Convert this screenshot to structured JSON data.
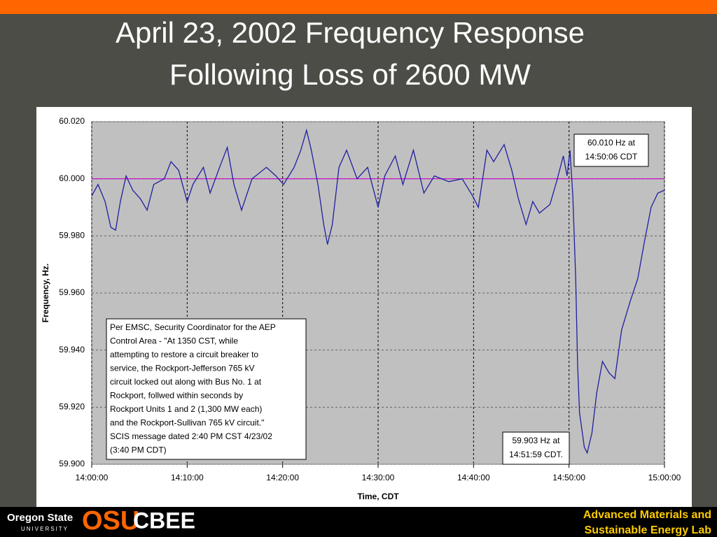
{
  "slide": {
    "title_lines": [
      "April 23, 2002 Frequency Response",
      "Following Loss of 2600 MW"
    ],
    "footer_left": [
      "Oregon State",
      "UNIVERSITY"
    ],
    "footer_osu": "OSU",
    "footer_cbee": "CBEE",
    "footer_right": [
      "Advanced Materials and",
      "Sustainable Energy Lab"
    ]
  },
  "chart_data": {
    "type": "line",
    "y_label": "Frequency, Hz.",
    "x_label": "Time, CDT",
    "xlim": [
      0,
      60
    ],
    "xticks": [
      {
        "value": 0,
        "label": "14:00:00"
      },
      {
        "value": 10,
        "label": "14:10:00"
      },
      {
        "value": 20,
        "label": "14:20:00"
      },
      {
        "value": 30,
        "label": "14:30:00"
      },
      {
        "value": 40,
        "label": "14:40:00"
      },
      {
        "value": 50,
        "label": "14:50:00"
      },
      {
        "value": 60,
        "label": "15:00:00"
      }
    ],
    "ylim": [
      59.9,
      60.02
    ],
    "yticks": [
      {
        "value": 59.9,
        "label": "59.900"
      },
      {
        "value": 59.92,
        "label": "59.920"
      },
      {
        "value": 59.94,
        "label": "59.940"
      },
      {
        "value": 59.96,
        "label": "59.960"
      },
      {
        "value": 59.98,
        "label": "59.980"
      },
      {
        "value": 60,
        "label": "60.000"
      },
      {
        "value": 60.02,
        "label": "60.020"
      }
    ],
    "grid": true,
    "hline": {
      "value": 60,
      "color": "#cc00cc"
    },
    "series": [
      {
        "color": "#1f1fa0",
        "x": [
          0,
          0.66,
          1.4,
          2,
          2.5,
          3,
          3.6,
          4.3,
          5.1,
          5.8,
          6.5,
          7.6,
          8.3,
          9.1,
          10,
          10.6,
          11.7,
          12.4,
          13.5,
          14.2,
          14.9,
          15.7,
          16.8,
          18.3,
          19.3,
          20.1,
          21.2,
          21.9,
          22.5,
          23,
          23.7,
          24.3,
          24.7,
          25.2,
          25.9,
          26.7,
          27.8,
          28.9,
          30,
          30.7,
          31.8,
          32.6,
          33.7,
          34.8,
          35.9,
          37.4,
          38.8,
          39.9,
          40.5,
          41.4,
          42.1,
          43.2,
          44,
          44.7,
          45.5,
          46.2,
          46.9,
          48,
          48.7,
          49.4,
          49.8,
          50.1,
          50.4,
          50.7,
          50.9,
          51.1,
          51.6,
          51.9,
          52.4,
          52.9,
          53.5,
          54.2,
          54.8,
          55.5,
          56.4,
          57.2,
          57.9,
          58.6,
          59.3,
          60
        ],
        "values": [
          59.994,
          59.998,
          59.992,
          59.983,
          59.982,
          59.992,
          60.001,
          59.996,
          59.993,
          59.989,
          59.998,
          60.0,
          60.006,
          60.003,
          59.992,
          59.998,
          60.004,
          59.995,
          60.005,
          60.011,
          59.998,
          59.989,
          60.0,
          60.004,
          60.001,
          59.998,
          60.004,
          60.01,
          60.017,
          60.01,
          59.998,
          59.984,
          59.977,
          59.984,
          60.004,
          60.01,
          60.0,
          60.004,
          59.99,
          60.001,
          60.008,
          59.998,
          60.01,
          59.995,
          60.001,
          59.999,
          60.0,
          59.994,
          59.99,
          60.01,
          60.006,
          60.012,
          60.003,
          59.993,
          59.984,
          59.992,
          59.988,
          59.991,
          59.999,
          60.008,
          60.001,
          60.01,
          59.994,
          59.965,
          59.935,
          59.918,
          59.906,
          59.904,
          59.911,
          59.925,
          59.936,
          59.932,
          59.93,
          59.947,
          59.957,
          59.965,
          59.978,
          59.99,
          59.995,
          59.996
        ]
      }
    ],
    "annotations": [
      {
        "lines": [
          "60.010 Hz at",
          "14:50:06 CDT"
        ]
      },
      {
        "lines": [
          "59.903 Hz at",
          "14:51:59 CDT."
        ]
      },
      {
        "lines": [
          "Per EMSC, Security Coordinator for the AEP",
          "Control Area -  \"At 1350 CST, while",
          "attempting to restore a circuit breaker to",
          "service, the Rockport-Jefferson 765 kV",
          "circuit locked out along with Bus No. 1 at",
          "Rockport, follwed within seconds by",
          "Rockport Units 1 and 2 (1,300 MW each)",
          "and the Rockport-Sullivan 765 kV circuit.\"",
          "SCIS message dated 2:40 PM CST 4/23/02",
          "(3:40 PM CDT)"
        ]
      }
    ]
  }
}
